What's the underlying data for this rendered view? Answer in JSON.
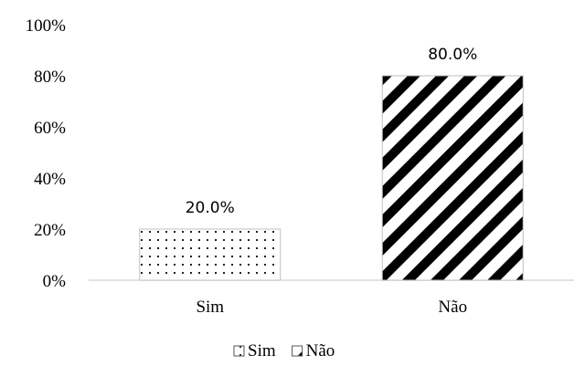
{
  "chart_data": {
    "type": "bar",
    "categories": [
      "Sim",
      "Não"
    ],
    "series": [
      {
        "name": "Sim",
        "values": [
          20.0,
          null
        ],
        "pattern": "dots"
      },
      {
        "name": "Não",
        "values": [
          null,
          80.0
        ],
        "pattern": "diagonal-stripes"
      }
    ],
    "data_labels": [
      "20.0%",
      "80.0%"
    ],
    "ylim": [
      0,
      100
    ],
    "yticks": [
      "0%",
      "20%",
      "40%",
      "60%",
      "80%",
      "100%"
    ],
    "ytick_values": [
      0,
      20,
      40,
      60,
      80,
      100
    ],
    "grid": false,
    "legend_position": "bottom",
    "title": "",
    "xlabel": "",
    "ylabel": "",
    "colors": {
      "ink": "#000000",
      "fill": "#ffffff",
      "axis": "#d9d9d9"
    }
  }
}
